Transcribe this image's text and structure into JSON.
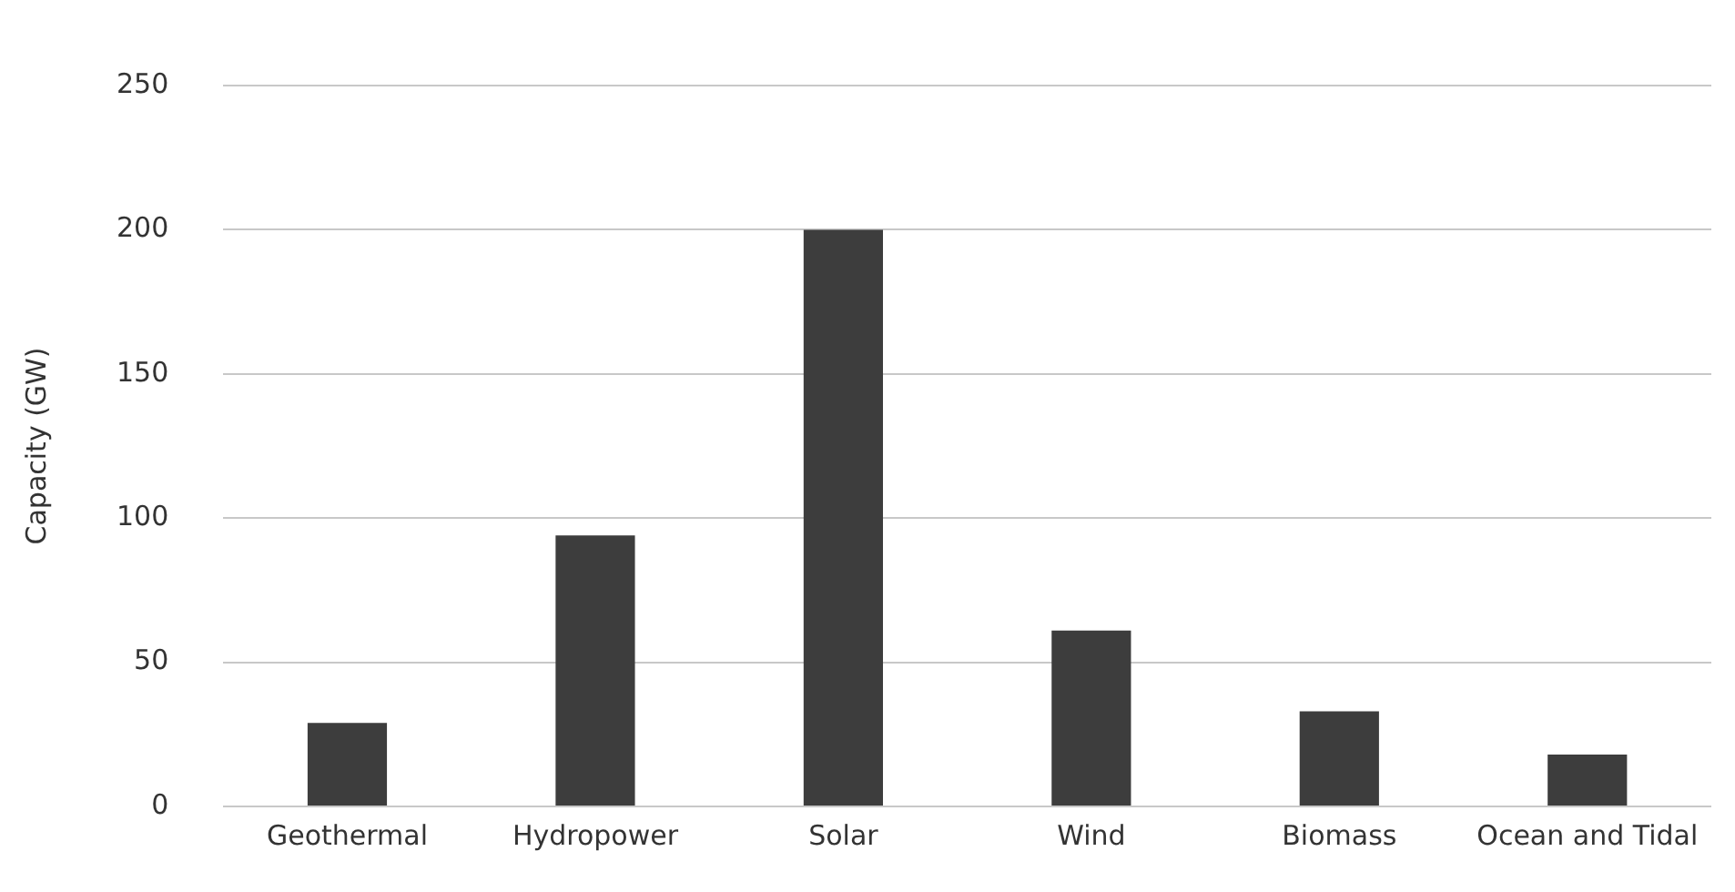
{
  "chart_data": {
    "type": "bar",
    "ylabel": "Capacity (GW)",
    "categories": [
      "Geothermal",
      "Hydropower",
      "Solar",
      "Wind",
      "Biomass",
      "Ocean and Tidal"
    ],
    "values": [
      29,
      94,
      200,
      61,
      33,
      18
    ],
    "color": "#3d3d3d",
    "ylim": [
      0,
      250
    ],
    "yticks": [
      0,
      50,
      100,
      150,
      200,
      250
    ],
    "grid": "y"
  }
}
